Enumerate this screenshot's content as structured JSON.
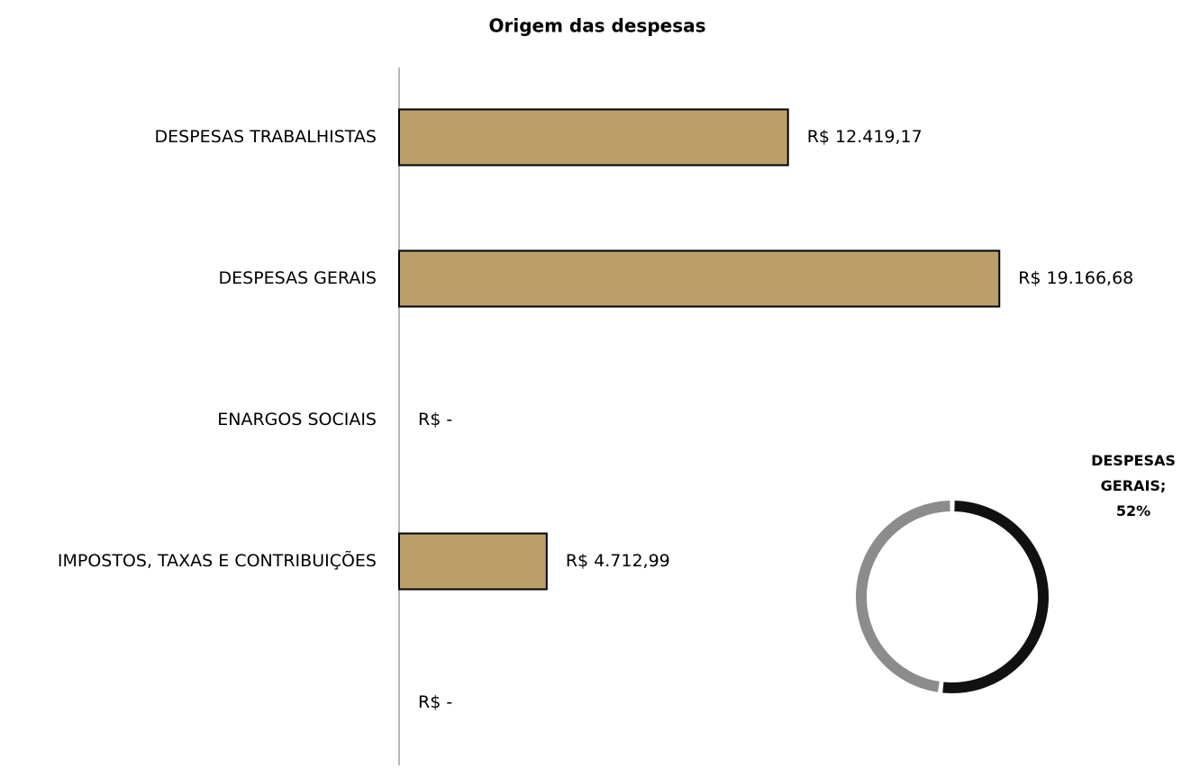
{
  "chart_data": [
    {
      "type": "barh",
      "title": "Origem das despesas",
      "categories": [
        "DESPESAS TRABALHISTAS",
        "DESPESAS GERAIS",
        "ENARGOS SOCIAIS",
        "IMPOSTOS, TAXAS E CONTRIBUIÇÕES",
        null
      ],
      "values": [
        12419.17,
        19166.68,
        0,
        4712.99,
        0
      ],
      "value_labels": [
        "R$ 12.419,17",
        "R$ 19.166,68",
        "R$ -",
        "R$ 4.712,99",
        "R$ -"
      ],
      "color": "#bb9f6a",
      "xlim": [
        0,
        25000
      ]
    },
    {
      "type": "donut",
      "categories": [
        "DESPESAS GERAIS",
        null
      ],
      "values": [
        52,
        48
      ],
      "value_labels": [
        "52%",
        null
      ],
      "label_separator": ";",
      "colors": [
        "#111111",
        "#8c8c8c"
      ]
    }
  ]
}
